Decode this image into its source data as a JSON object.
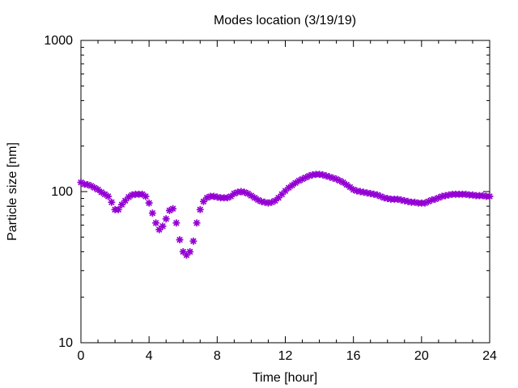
{
  "chart_data": {
    "type": "scatter",
    "title": "Modes location (3/19/19)",
    "xlabel": "Time [hour]",
    "ylabel": "Particle size [nm]",
    "xlim": [
      0,
      24
    ],
    "ylim": [
      10,
      1000
    ],
    "xscale": "linear",
    "yscale": "log",
    "xticks": [
      0,
      4,
      8,
      12,
      16,
      20,
      24
    ],
    "xtick_labels": [
      "0",
      "4",
      "8",
      "12",
      "16",
      "20",
      "24"
    ],
    "yticks": [
      10,
      100,
      1000
    ],
    "ytick_labels": [
      "10",
      "100",
      "1000"
    ],
    "grid": false,
    "legend": false,
    "marker_color": "#9400d3",
    "marker": "star",
    "series": [
      {
        "x": [
          0.0,
          0.2,
          0.4,
          0.6,
          0.8,
          1.0,
          1.2,
          1.4,
          1.6,
          1.8,
          2.0,
          2.2,
          2.4,
          2.6,
          2.8,
          3.0,
          3.2,
          3.4,
          3.6,
          3.8,
          4.0,
          4.2,
          4.4,
          4.6,
          4.8,
          5.0,
          5.2,
          5.4,
          5.6,
          5.8,
          6.0,
          6.2,
          6.4,
          6.6,
          6.8,
          7.0,
          7.2,
          7.4,
          7.6,
          7.8,
          8.0,
          8.2,
          8.4,
          8.6,
          8.8,
          9.0,
          9.2,
          9.4,
          9.6,
          9.8,
          10.0,
          10.2,
          10.4,
          10.6,
          10.8,
          11.0,
          11.2,
          11.4,
          11.6,
          11.8,
          12.0,
          12.2,
          12.4,
          12.6,
          12.8,
          13.0,
          13.2,
          13.4,
          13.6,
          13.8,
          14.0,
          14.2,
          14.4,
          14.6,
          14.8,
          15.0,
          15.2,
          15.4,
          15.6,
          15.8,
          16.0,
          16.2,
          16.4,
          16.6,
          16.8,
          17.0,
          17.2,
          17.4,
          17.6,
          17.8,
          18.0,
          18.2,
          18.4,
          18.6,
          18.8,
          19.0,
          19.2,
          19.4,
          19.6,
          19.8,
          20.0,
          20.2,
          20.4,
          20.6,
          20.8,
          21.0,
          21.2,
          21.4,
          21.6,
          21.8,
          22.0,
          22.2,
          22.4,
          22.6,
          22.8,
          23.0,
          23.2,
          23.4,
          23.6,
          23.8,
          24.0
        ],
        "y": [
          115,
          112,
          111,
          109,
          106,
          103,
          99,
          96,
          93,
          85,
          76,
          76,
          82,
          87,
          92,
          95,
          96,
          96,
          96,
          93,
          84,
          72,
          62,
          56,
          59,
          66,
          75,
          77,
          62,
          48,
          40,
          38,
          40,
          47,
          62,
          76,
          86,
          91,
          93,
          93,
          92,
          91,
          91,
          91,
          93,
          97,
          99,
          100,
          99,
          97,
          94,
          91,
          88,
          86,
          85,
          84,
          85,
          87,
          91,
          96,
          101,
          106,
          110,
          114,
          118,
          121,
          124,
          127,
          129,
          130,
          130,
          129,
          127,
          125,
          123,
          121,
          118,
          115,
          111,
          107,
          103,
          101,
          100,
          99,
          98,
          97,
          96,
          95,
          93,
          91,
          90,
          89,
          89,
          89,
          88,
          87,
          86,
          85,
          85,
          84,
          84,
          84,
          86,
          88,
          89,
          91,
          93,
          94,
          95,
          96,
          96,
          96,
          96,
          96,
          95,
          95,
          94,
          94,
          94,
          93,
          93
        ]
      }
    ]
  }
}
